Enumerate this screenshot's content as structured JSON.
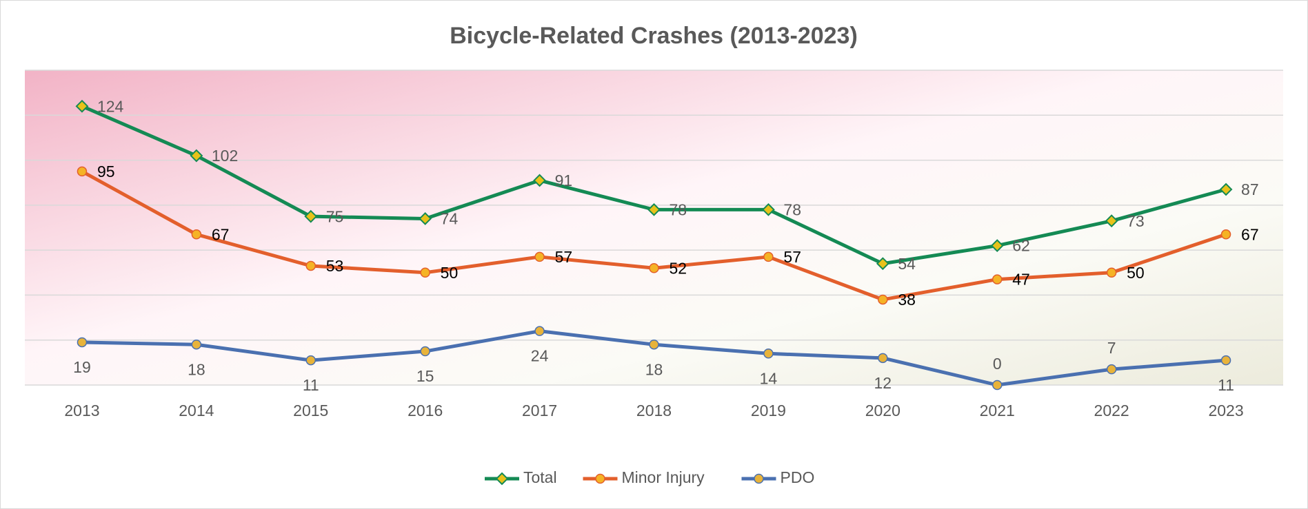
{
  "chart_data": {
    "type": "line",
    "title": "Bicycle-Related Crashes (2013-2023)",
    "categories": [
      "2013",
      "2014",
      "2015",
      "2016",
      "2017",
      "2018",
      "2019",
      "2020",
      "2021",
      "2022",
      "2023"
    ],
    "series": [
      {
        "name": "Total",
        "color": "#148a54",
        "marker_color": "#e8c21a",
        "marker": "diamond",
        "values": [
          124,
          102,
          75,
          74,
          91,
          78,
          78,
          54,
          62,
          73,
          87
        ]
      },
      {
        "name": "Minor Injury",
        "color": "#e35f2c",
        "marker_color": "#f5b325",
        "marker": "circle",
        "values": [
          95,
          67,
          53,
          50,
          57,
          52,
          57,
          38,
          47,
          50,
          67
        ]
      },
      {
        "name": "PDO",
        "color": "#4a70b0",
        "marker_color": "#e8b33a",
        "marker": "circle",
        "values": [
          19,
          18,
          11,
          15,
          24,
          18,
          14,
          12,
          0,
          7,
          11
        ]
      }
    ],
    "ylim": [
      0,
      140
    ],
    "yticks": [
      0,
      20,
      40,
      60,
      80,
      100,
      120,
      140
    ],
    "grid": true,
    "legend": "bottom"
  }
}
